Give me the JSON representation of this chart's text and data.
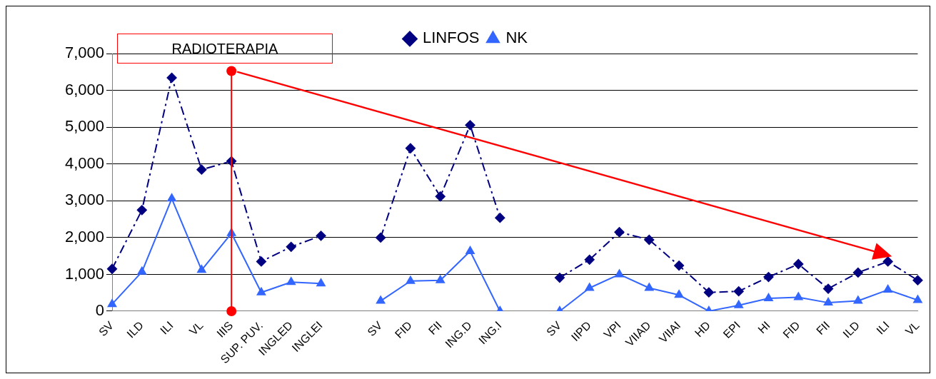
{
  "chart_data": {
    "type": "line",
    "categories": [
      "SV",
      "ILD",
      "ILI",
      "VL",
      "IIIS",
      "SUP. PUV.",
      "INGLED",
      "INGLEI",
      null,
      "SV",
      "FID",
      "FII",
      "ING.D",
      "ING.I",
      null,
      "SV",
      "IIPD",
      "VPI",
      "VIIAD",
      "VIIAI",
      "HD",
      "EPI",
      "HI",
      "FID",
      "FII",
      "ILD",
      "ILI",
      "VL"
    ],
    "series": [
      {
        "name": "LINFOS",
        "color": "#000080",
        "marker": "diamond",
        "line_style": "dashed",
        "values": [
          1150,
          2750,
          6350,
          3850,
          4080,
          1350,
          1750,
          2050,
          null,
          2000,
          4430,
          3120,
          5060,
          2540,
          null,
          910,
          1400,
          2150,
          1940,
          1240,
          510,
          540,
          930,
          1280,
          610,
          1050,
          1350,
          840
        ]
      },
      {
        "name": "NK",
        "color": "#3366ff",
        "marker": "triangle",
        "line_style": "solid",
        "values": [
          190,
          1070,
          3060,
          1120,
          2120,
          510,
          790,
          750,
          null,
          280,
          820,
          840,
          1630,
          0,
          null,
          0,
          630,
          1000,
          630,
          440,
          0,
          160,
          350,
          380,
          230,
          280,
          580,
          300
        ]
      }
    ],
    "ylim": [
      0,
      7000
    ],
    "yticks": [
      {
        "value": 0,
        "label": "0"
      },
      {
        "value": 1000,
        "label": "1,000"
      },
      {
        "value": 2000,
        "label": "2,000"
      },
      {
        "value": 3000,
        "label": "3,000"
      },
      {
        "value": 4000,
        "label": "4,000"
      },
      {
        "value": 5000,
        "label": "5,000"
      },
      {
        "value": 6000,
        "label": "6,000"
      },
      {
        "value": 7000,
        "label": "7,000"
      }
    ],
    "grid": "y",
    "legend": "top",
    "ref_lines": [
      {
        "axis": "x",
        "value": "IIIS",
        "color": "#ff0000"
      }
    ],
    "annotations": [
      "RADIOTERAPIA"
    ]
  }
}
